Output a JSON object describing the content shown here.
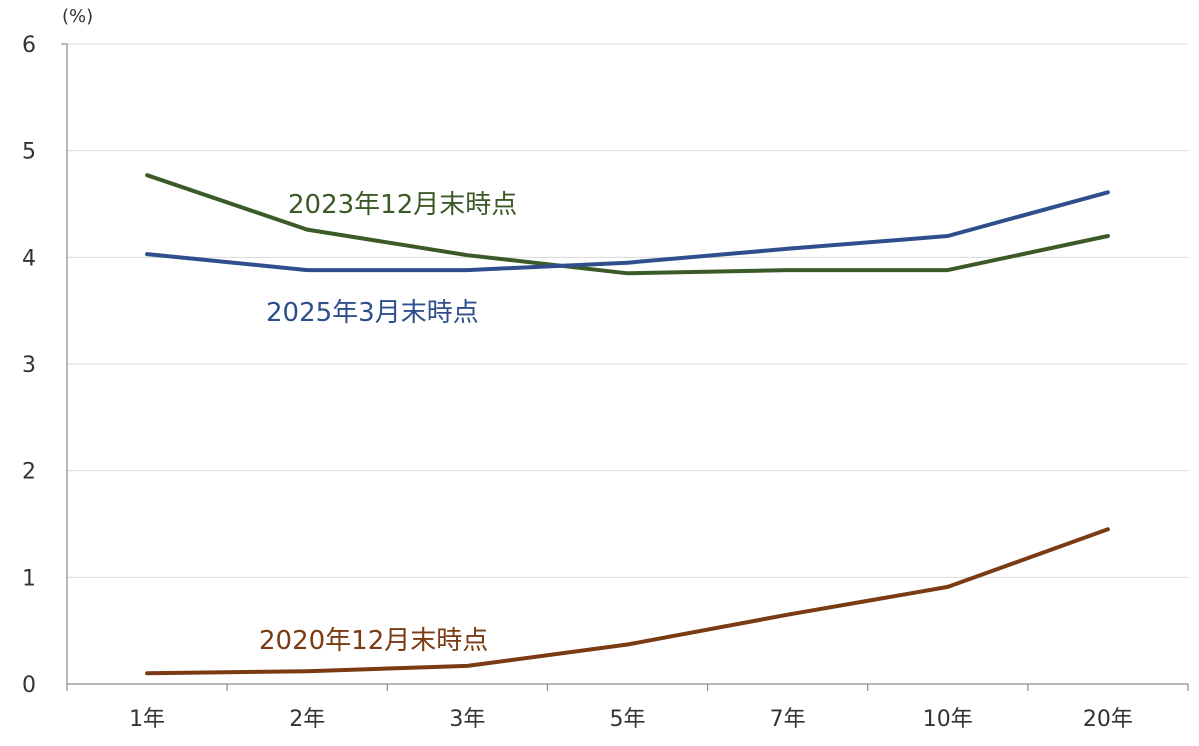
{
  "chart_data": {
    "type": "line",
    "unit_label": "(%)",
    "ylim": [
      0,
      6
    ],
    "yticks": [
      0,
      1,
      2,
      3,
      4,
      5,
      6
    ],
    "categories": [
      "1年",
      "2年",
      "3年",
      "5年",
      "7年",
      "10年",
      "20年"
    ],
    "grid": true,
    "series": [
      {
        "name": "2023年12月末時点",
        "color": "#3c5a28",
        "values": [
          4.77,
          4.26,
          4.02,
          3.85,
          3.88,
          3.88,
          4.2
        ]
      },
      {
        "name": "2025年3月末時点",
        "color": "#2f4f8c",
        "values": [
          4.03,
          3.88,
          3.88,
          3.95,
          4.08,
          4.2,
          4.61
        ]
      },
      {
        "name": "2020年12月末時点",
        "color": "#7a3a12",
        "values": [
          0.1,
          0.12,
          0.17,
          0.37,
          0.65,
          0.91,
          1.45
        ]
      }
    ]
  }
}
